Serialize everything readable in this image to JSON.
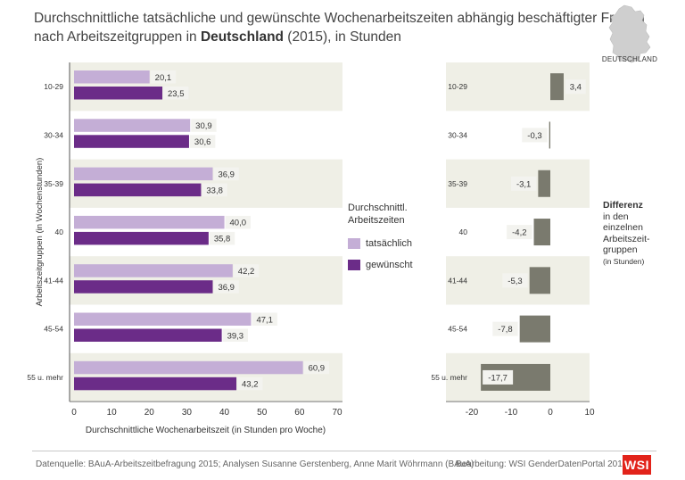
{
  "title": {
    "line1": "Durchschnittliche tatsächliche und gewünschte Wochenarbeitszeiten abhängig beschäftigter Frauen",
    "line2_pre": "nach Arbeitszeitgruppen in ",
    "line2_bold": "Deutschland",
    "line2_post": " (2015), in Stunden"
  },
  "map_label": "DEUTSCHLAND",
  "legend": {
    "title_line1": "Durchschnittl.",
    "title_line2": "Arbeitszeiten",
    "actual": "tatsächlich",
    "desired": "gewünscht"
  },
  "diff_legend": {
    "title": "Differenz",
    "lines": [
      "in den",
      "einzelnen",
      "Arbeitszeit-",
      "gruppen"
    ],
    "unit": "(in Stunden)"
  },
  "source": "Datenquelle: BAuA-Arbeitszeitbefragung 2015; Analysen Susanne Gerstenberg, Anne Marit Wöhrmann (BAuA)",
  "credit": "Bearbeitung: WSI GenderDatenPortal 2017",
  "logo_text": "WSI",
  "colors": {
    "actual": "#c4aed6",
    "desired": "#6b2c88",
    "difference": "#7a7a6e",
    "band": "#efefe6",
    "label_box": "#f3f3ef"
  },
  "chart_data": [
    {
      "type": "bar",
      "orientation": "horizontal",
      "categories": [
        "10-29",
        "30-34",
        "35-39",
        "40",
        "41-44",
        "45-54",
        "55 u. mehr"
      ],
      "series": [
        {
          "name": "tatsächlich",
          "values": [
            20.1,
            30.9,
            36.9,
            40.0,
            42.2,
            47.1,
            60.9
          ],
          "labels": [
            "20,1",
            "30,9",
            "36,9",
            "40,0",
            "42,2",
            "47,1",
            "60,9"
          ]
        },
        {
          "name": "gewünscht",
          "values": [
            23.5,
            30.6,
            33.8,
            35.8,
            36.9,
            39.3,
            43.2
          ],
          "labels": [
            "23,5",
            "30,6",
            "33,8",
            "35,8",
            "36,9",
            "39,3",
            "43,2"
          ]
        }
      ],
      "xlim": [
        0,
        70
      ],
      "xticks": [
        0,
        10,
        20,
        30,
        40,
        50,
        60,
        70
      ],
      "xlabel": "Durchschnittliche Wochenarbeitszeit (in Stunden pro Woche)",
      "ylabel": "Arbeitszeitgruppen (in Wochenstunden)",
      "grid": false,
      "banded_rows": true
    },
    {
      "type": "bar",
      "orientation": "horizontal",
      "categories": [
        "10-29",
        "30-34",
        "35-39",
        "40",
        "41-44",
        "45-54",
        "55 u. mehr"
      ],
      "values": [
        3.4,
        -0.3,
        -3.1,
        -4.2,
        -5.3,
        -7.8,
        -17.7
      ],
      "labels": [
        "3,4",
        "-0,3",
        "-3,1",
        "-4,2",
        "-5,3",
        "-7,8",
        "-17,7"
      ],
      "xlim": [
        -20,
        10
      ],
      "xticks": [
        -20,
        -10,
        0,
        10
      ],
      "grid": false,
      "banded_rows": true
    }
  ]
}
